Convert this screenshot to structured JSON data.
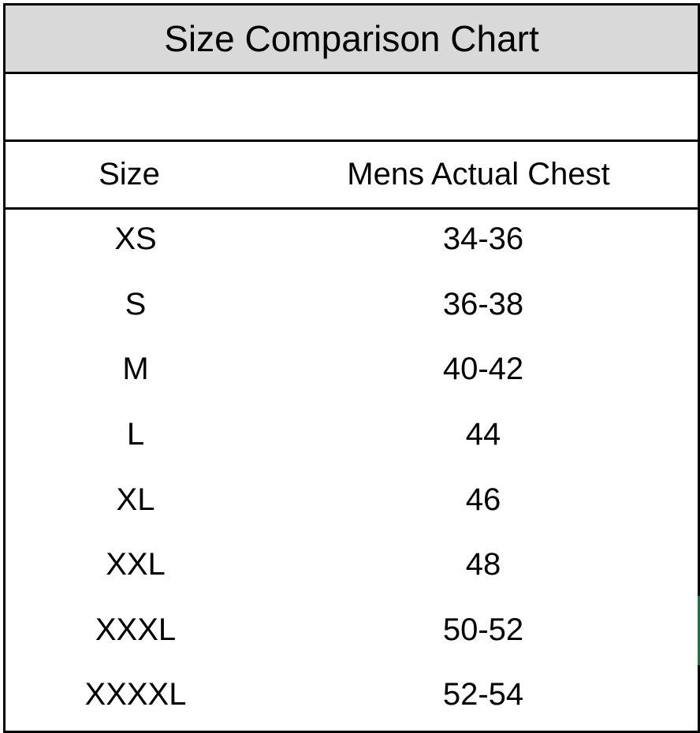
{
  "header": {
    "title": "Size Comparison Chart"
  },
  "table": {
    "columns": [
      "Size",
      "Mens Actual Chest"
    ],
    "rows": [
      [
        "XS",
        "34-36"
      ],
      [
        "S",
        "36-38"
      ],
      [
        "M",
        "40-42"
      ],
      [
        "L",
        "44"
      ],
      [
        "XL",
        "46"
      ],
      [
        "XXL",
        "48"
      ],
      [
        "XXXL",
        "50-52"
      ],
      [
        "XXXXL",
        "52-54"
      ]
    ]
  }
}
